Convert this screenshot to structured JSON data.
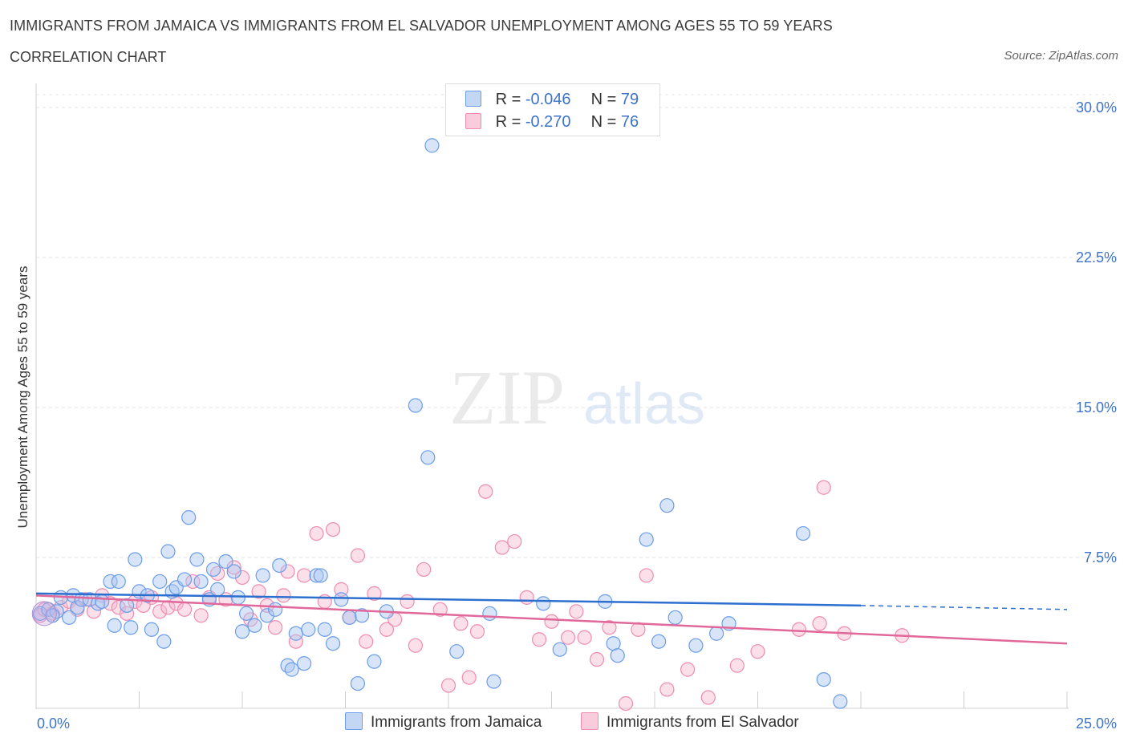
{
  "header": {
    "title": "IMMIGRANTS FROM JAMAICA VS IMMIGRANTS FROM EL SALVADOR UNEMPLOYMENT AMONG AGES 55 TO 59 YEARS",
    "subtitle": "CORRELATION CHART",
    "source": "Source: ZipAtlas.com"
  },
  "watermark": {
    "zip": "ZIP",
    "atlas": "atlas"
  },
  "legend": {
    "r_label": "R =",
    "n_label": "N =",
    "jamaica": {
      "r": "-0.046",
      "n": "79"
    },
    "elsalvador": {
      "r": "-0.270",
      "n": "76"
    }
  },
  "chart_data": {
    "type": "scatter",
    "title": "IMMIGRANTS FROM JAMAICA VS IMMIGRANTS FROM EL SALVADOR UNEMPLOYMENT AMONG AGES 55 TO 59 YEARS",
    "xlabel": "",
    "ylabel": "Unemployment Among Ages 55 to 59 years",
    "xlim": [
      0,
      25
    ],
    "ylim": [
      0,
      30
    ],
    "x_tick_labels": [
      "0.0%",
      "25.0%"
    ],
    "y_ticks": [
      7.5,
      15,
      22.5,
      30
    ],
    "y_tick_labels": [
      "7.5%",
      "15.0%",
      "22.5%",
      "30.0%"
    ],
    "colors": {
      "jamaica": "#6b9de8",
      "elsalvador": "#f08cb0",
      "jamaica_line": "#2d6fce",
      "elsalvador_line": "#e0689a"
    },
    "series": [
      {
        "name": "Immigrants from Jamaica",
        "trend": {
          "x0": 0,
          "y0": 5.7,
          "x1": 20,
          "y1": 5.1,
          "dash_to": 25,
          "dash_y": 4.9
        },
        "points": [
          [
            0.1,
            4.7
          ],
          [
            0.3,
            4.9
          ],
          [
            0.5,
            4.8
          ],
          [
            0.6,
            5.5
          ],
          [
            0.8,
            4.5
          ],
          [
            0.9,
            5.6
          ],
          [
            1.0,
            5.0
          ],
          [
            1.1,
            5.4
          ],
          [
            1.3,
            5.4
          ],
          [
            1.5,
            5.2
          ],
          [
            1.8,
            6.3
          ],
          [
            1.9,
            4.1
          ],
          [
            2.2,
            5.1
          ],
          [
            2.3,
            4.0
          ],
          [
            2.4,
            7.4
          ],
          [
            2.5,
            5.8
          ],
          [
            2.7,
            5.6
          ],
          [
            2.8,
            3.9
          ],
          [
            3.0,
            6.3
          ],
          [
            3.1,
            3.3
          ],
          [
            3.2,
            7.8
          ],
          [
            3.3,
            5.8
          ],
          [
            3.4,
            6.0
          ],
          [
            3.6,
            6.4
          ],
          [
            3.7,
            9.5
          ],
          [
            3.9,
            7.4
          ],
          [
            4.0,
            6.3
          ],
          [
            4.2,
            5.4
          ],
          [
            4.3,
            6.9
          ],
          [
            4.4,
            5.9
          ],
          [
            4.6,
            7.3
          ],
          [
            4.8,
            6.8
          ],
          [
            4.9,
            5.5
          ],
          [
            5.0,
            3.8
          ],
          [
            5.1,
            4.7
          ],
          [
            5.3,
            4.1
          ],
          [
            5.5,
            6.6
          ],
          [
            5.6,
            4.6
          ],
          [
            5.8,
            4.9
          ],
          [
            5.9,
            7.1
          ],
          [
            6.1,
            2.1
          ],
          [
            6.2,
            1.9
          ],
          [
            6.3,
            3.7
          ],
          [
            6.5,
            2.2
          ],
          [
            6.6,
            3.9
          ],
          [
            6.8,
            6.6
          ],
          [
            6.9,
            6.6
          ],
          [
            7.0,
            3.9
          ],
          [
            7.2,
            3.2
          ],
          [
            7.4,
            5.4
          ],
          [
            7.6,
            4.5
          ],
          [
            7.8,
            1.2
          ],
          [
            7.9,
            4.6
          ],
          [
            8.2,
            2.3
          ],
          [
            8.5,
            4.8
          ],
          [
            9.2,
            15.1
          ],
          [
            9.5,
            12.5
          ],
          [
            9.6,
            28.1
          ],
          [
            10.2,
            2.8
          ],
          [
            11.0,
            4.7
          ],
          [
            11.1,
            1.3
          ],
          [
            12.3,
            5.2
          ],
          [
            12.7,
            2.9
          ],
          [
            13.8,
            5.3
          ],
          [
            14.0,
            3.2
          ],
          [
            14.1,
            2.6
          ],
          [
            14.8,
            8.4
          ],
          [
            15.1,
            3.3
          ],
          [
            15.3,
            10.1
          ],
          [
            15.5,
            4.5
          ],
          [
            16.0,
            3.1
          ],
          [
            16.5,
            3.7
          ],
          [
            16.8,
            4.2
          ],
          [
            18.6,
            8.7
          ],
          [
            19.1,
            1.4
          ],
          [
            19.5,
            0.3
          ],
          [
            0.4,
            4.6
          ],
          [
            1.6,
            5.3
          ],
          [
            2.0,
            6.3
          ]
        ]
      },
      {
        "name": "Immigrants from El Salvador",
        "trend": {
          "x0": 0,
          "y0": 5.6,
          "x1": 25,
          "y1": 3.2
        },
        "points": [
          [
            0.1,
            4.6
          ],
          [
            0.2,
            4.9
          ],
          [
            0.4,
            4.7
          ],
          [
            0.6,
            5.0
          ],
          [
            0.8,
            5.3
          ],
          [
            1.0,
            4.9
          ],
          [
            1.2,
            5.4
          ],
          [
            1.4,
            4.8
          ],
          [
            1.6,
            5.6
          ],
          [
            1.8,
            5.2
          ],
          [
            2.0,
            5.0
          ],
          [
            2.2,
            4.7
          ],
          [
            2.4,
            5.3
          ],
          [
            2.6,
            5.1
          ],
          [
            2.8,
            5.5
          ],
          [
            3.0,
            4.8
          ],
          [
            3.2,
            5.0
          ],
          [
            3.4,
            5.2
          ],
          [
            3.6,
            4.9
          ],
          [
            3.8,
            6.3
          ],
          [
            4.0,
            4.6
          ],
          [
            4.2,
            5.5
          ],
          [
            4.4,
            6.7
          ],
          [
            4.6,
            5.4
          ],
          [
            4.8,
            7.0
          ],
          [
            5.0,
            6.5
          ],
          [
            5.2,
            4.4
          ],
          [
            5.4,
            5.8
          ],
          [
            5.6,
            5.1
          ],
          [
            5.8,
            4.0
          ],
          [
            6.0,
            5.6
          ],
          [
            6.1,
            6.8
          ],
          [
            6.3,
            3.3
          ],
          [
            6.5,
            6.6
          ],
          [
            6.8,
            8.7
          ],
          [
            7.0,
            5.3
          ],
          [
            7.2,
            8.9
          ],
          [
            7.4,
            5.9
          ],
          [
            7.6,
            4.5
          ],
          [
            7.8,
            7.6
          ],
          [
            8.0,
            3.3
          ],
          [
            8.2,
            5.7
          ],
          [
            8.5,
            3.9
          ],
          [
            8.7,
            4.4
          ],
          [
            9.0,
            5.3
          ],
          [
            9.2,
            3.1
          ],
          [
            9.4,
            6.9
          ],
          [
            9.8,
            4.9
          ],
          [
            10.0,
            1.1
          ],
          [
            10.3,
            4.2
          ],
          [
            10.5,
            1.5
          ],
          [
            10.7,
            3.8
          ],
          [
            10.9,
            10.8
          ],
          [
            11.3,
            8.0
          ],
          [
            11.6,
            8.3
          ],
          [
            11.9,
            5.5
          ],
          [
            12.2,
            3.4
          ],
          [
            12.5,
            4.3
          ],
          [
            12.9,
            3.5
          ],
          [
            13.1,
            4.8
          ],
          [
            13.3,
            3.5
          ],
          [
            13.6,
            2.4
          ],
          [
            13.9,
            4.0
          ],
          [
            14.3,
            0.2
          ],
          [
            14.6,
            3.9
          ],
          [
            14.8,
            6.6
          ],
          [
            15.3,
            0.9
          ],
          [
            15.8,
            1.9
          ],
          [
            16.3,
            0.5
          ],
          [
            17.0,
            2.1
          ],
          [
            17.5,
            2.8
          ],
          [
            18.5,
            3.9
          ],
          [
            19.0,
            4.2
          ],
          [
            19.1,
            11.0
          ],
          [
            19.6,
            3.7
          ],
          [
            21.0,
            3.6
          ]
        ]
      }
    ]
  },
  "bottom_legend": {
    "jamaica_label": "Immigrants from Jamaica",
    "elsalvador_label": "Immigrants from El Salvador"
  }
}
